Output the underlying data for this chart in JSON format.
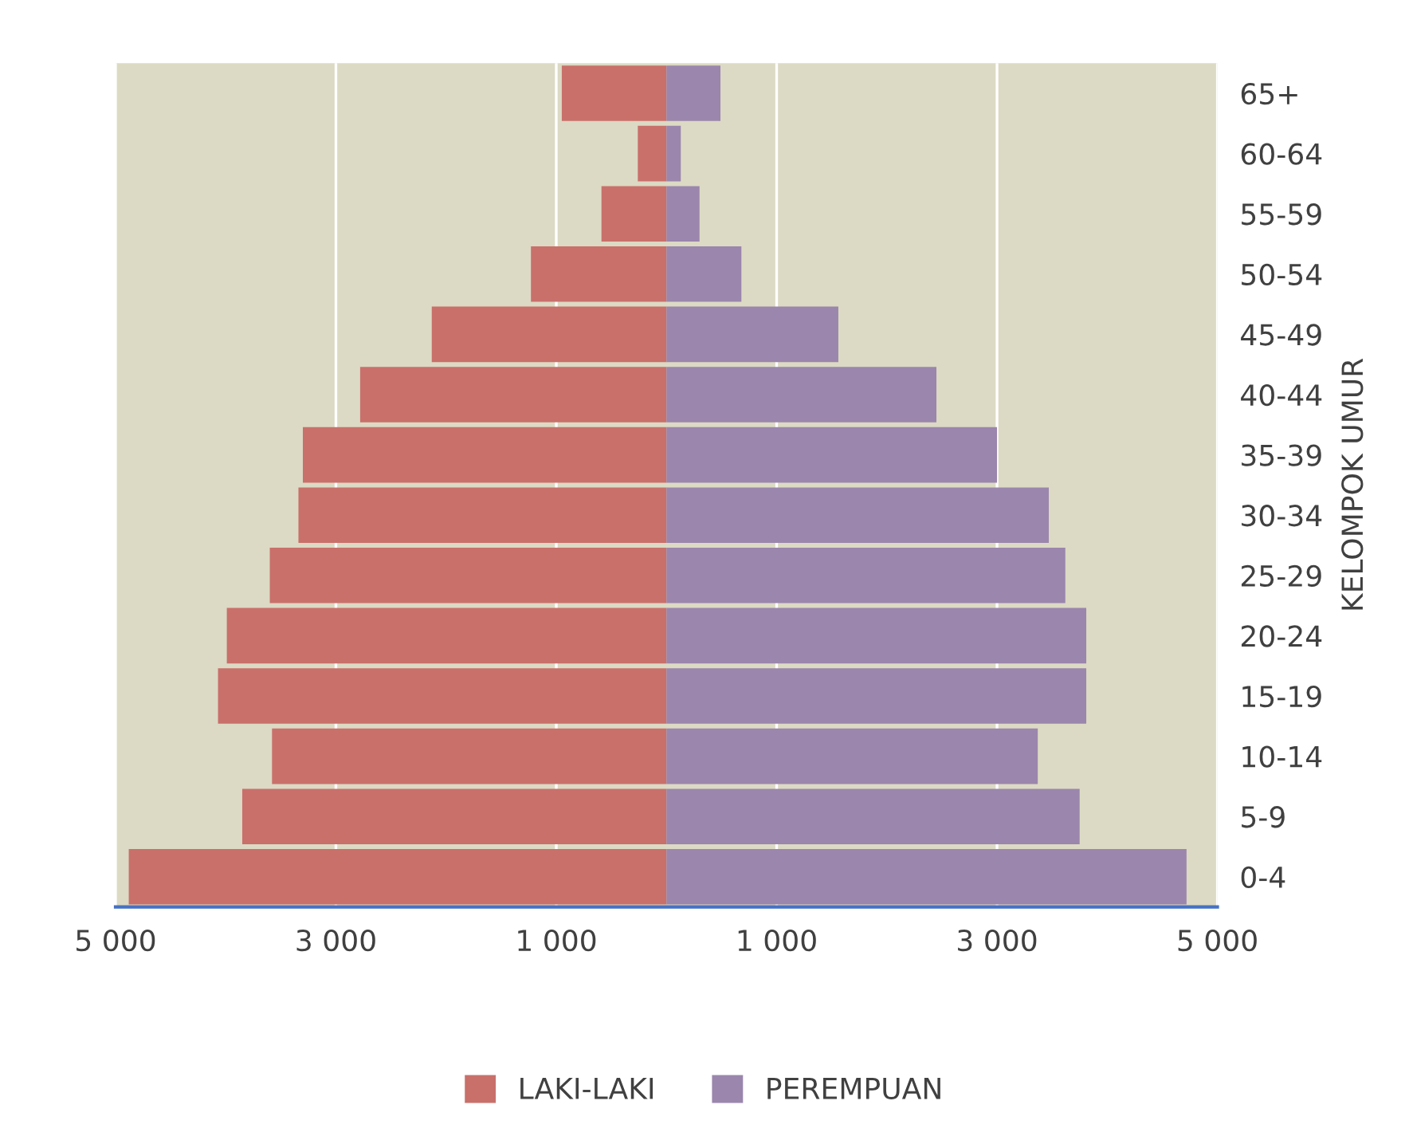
{
  "chart_data": {
    "type": "bar",
    "orientation": "horizontal",
    "stacked": true,
    "ylabel": "KELOMPOK UMUR",
    "categories": [
      "65+",
      "60-64",
      "55-59",
      "50-54",
      "45-49",
      "40-44",
      "35-39",
      "30-34",
      "25-29",
      "20-24",
      "15-19",
      "10-14",
      "5-9",
      "0-4"
    ],
    "series": [
      {
        "name": "LAKI-LAKI",
        "color": "#c9706b",
        "values": [
          -950,
          -260,
          -590,
          -1230,
          -2130,
          -2780,
          -3300,
          -3340,
          -3600,
          -3990,
          -4070,
          -3580,
          -3850,
          -4880
        ]
      },
      {
        "name": "PEREMPUAN",
        "color": "#9b86ad",
        "values": [
          490,
          130,
          300,
          680,
          1560,
          2450,
          3000,
          3470,
          3620,
          3810,
          3810,
          3370,
          3750,
          4720
        ]
      }
    ],
    "xlim": [
      -5000,
      5000
    ],
    "xticks": [
      {
        "value": -5000,
        "label": "5 000"
      },
      {
        "value": -3000,
        "label": "3 000"
      },
      {
        "value": -1000,
        "label": "1 000"
      },
      {
        "value": 1000,
        "label": "1 000"
      },
      {
        "value": 3000,
        "label": "3 000"
      },
      {
        "value": 5000,
        "label": "5 000"
      }
    ],
    "grid": "x",
    "legend": "bottom"
  }
}
